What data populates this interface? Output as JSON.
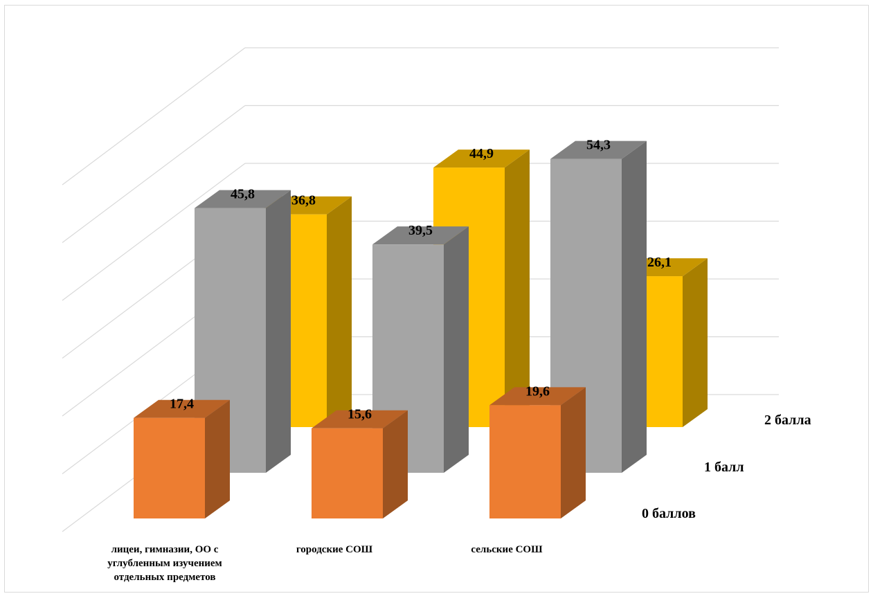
{
  "chart_data": {
    "type": "bar",
    "subtype": "3d-clustered-depth",
    "categories": [
      [
        "лицеи, гимназии, ОО с",
        "углубленным изучением",
        "отдельных предметов"
      ],
      [
        "городские СОШ"
      ],
      [
        "сельские СОШ"
      ]
    ],
    "series": [
      {
        "name": "0 баллов",
        "values": [
          17.4,
          15.6,
          19.6
        ],
        "value_labels": [
          "17,4",
          "15,6",
          "19,6"
        ],
        "color": "#ED7D31"
      },
      {
        "name": "1 балл",
        "values": [
          45.8,
          39.5,
          54.3
        ],
        "value_labels": [
          "45,8",
          "39,5",
          "54,3"
        ],
        "color": "#A5A5A5"
      },
      {
        "name": "2 балла",
        "values": [
          36.8,
          44.9,
          26.1
        ],
        "value_labels": [
          "36,8",
          "44,9",
          "26,1"
        ],
        "color": "#FFC000"
      }
    ],
    "ylim": [
      0,
      60
    ],
    "grid": true
  }
}
